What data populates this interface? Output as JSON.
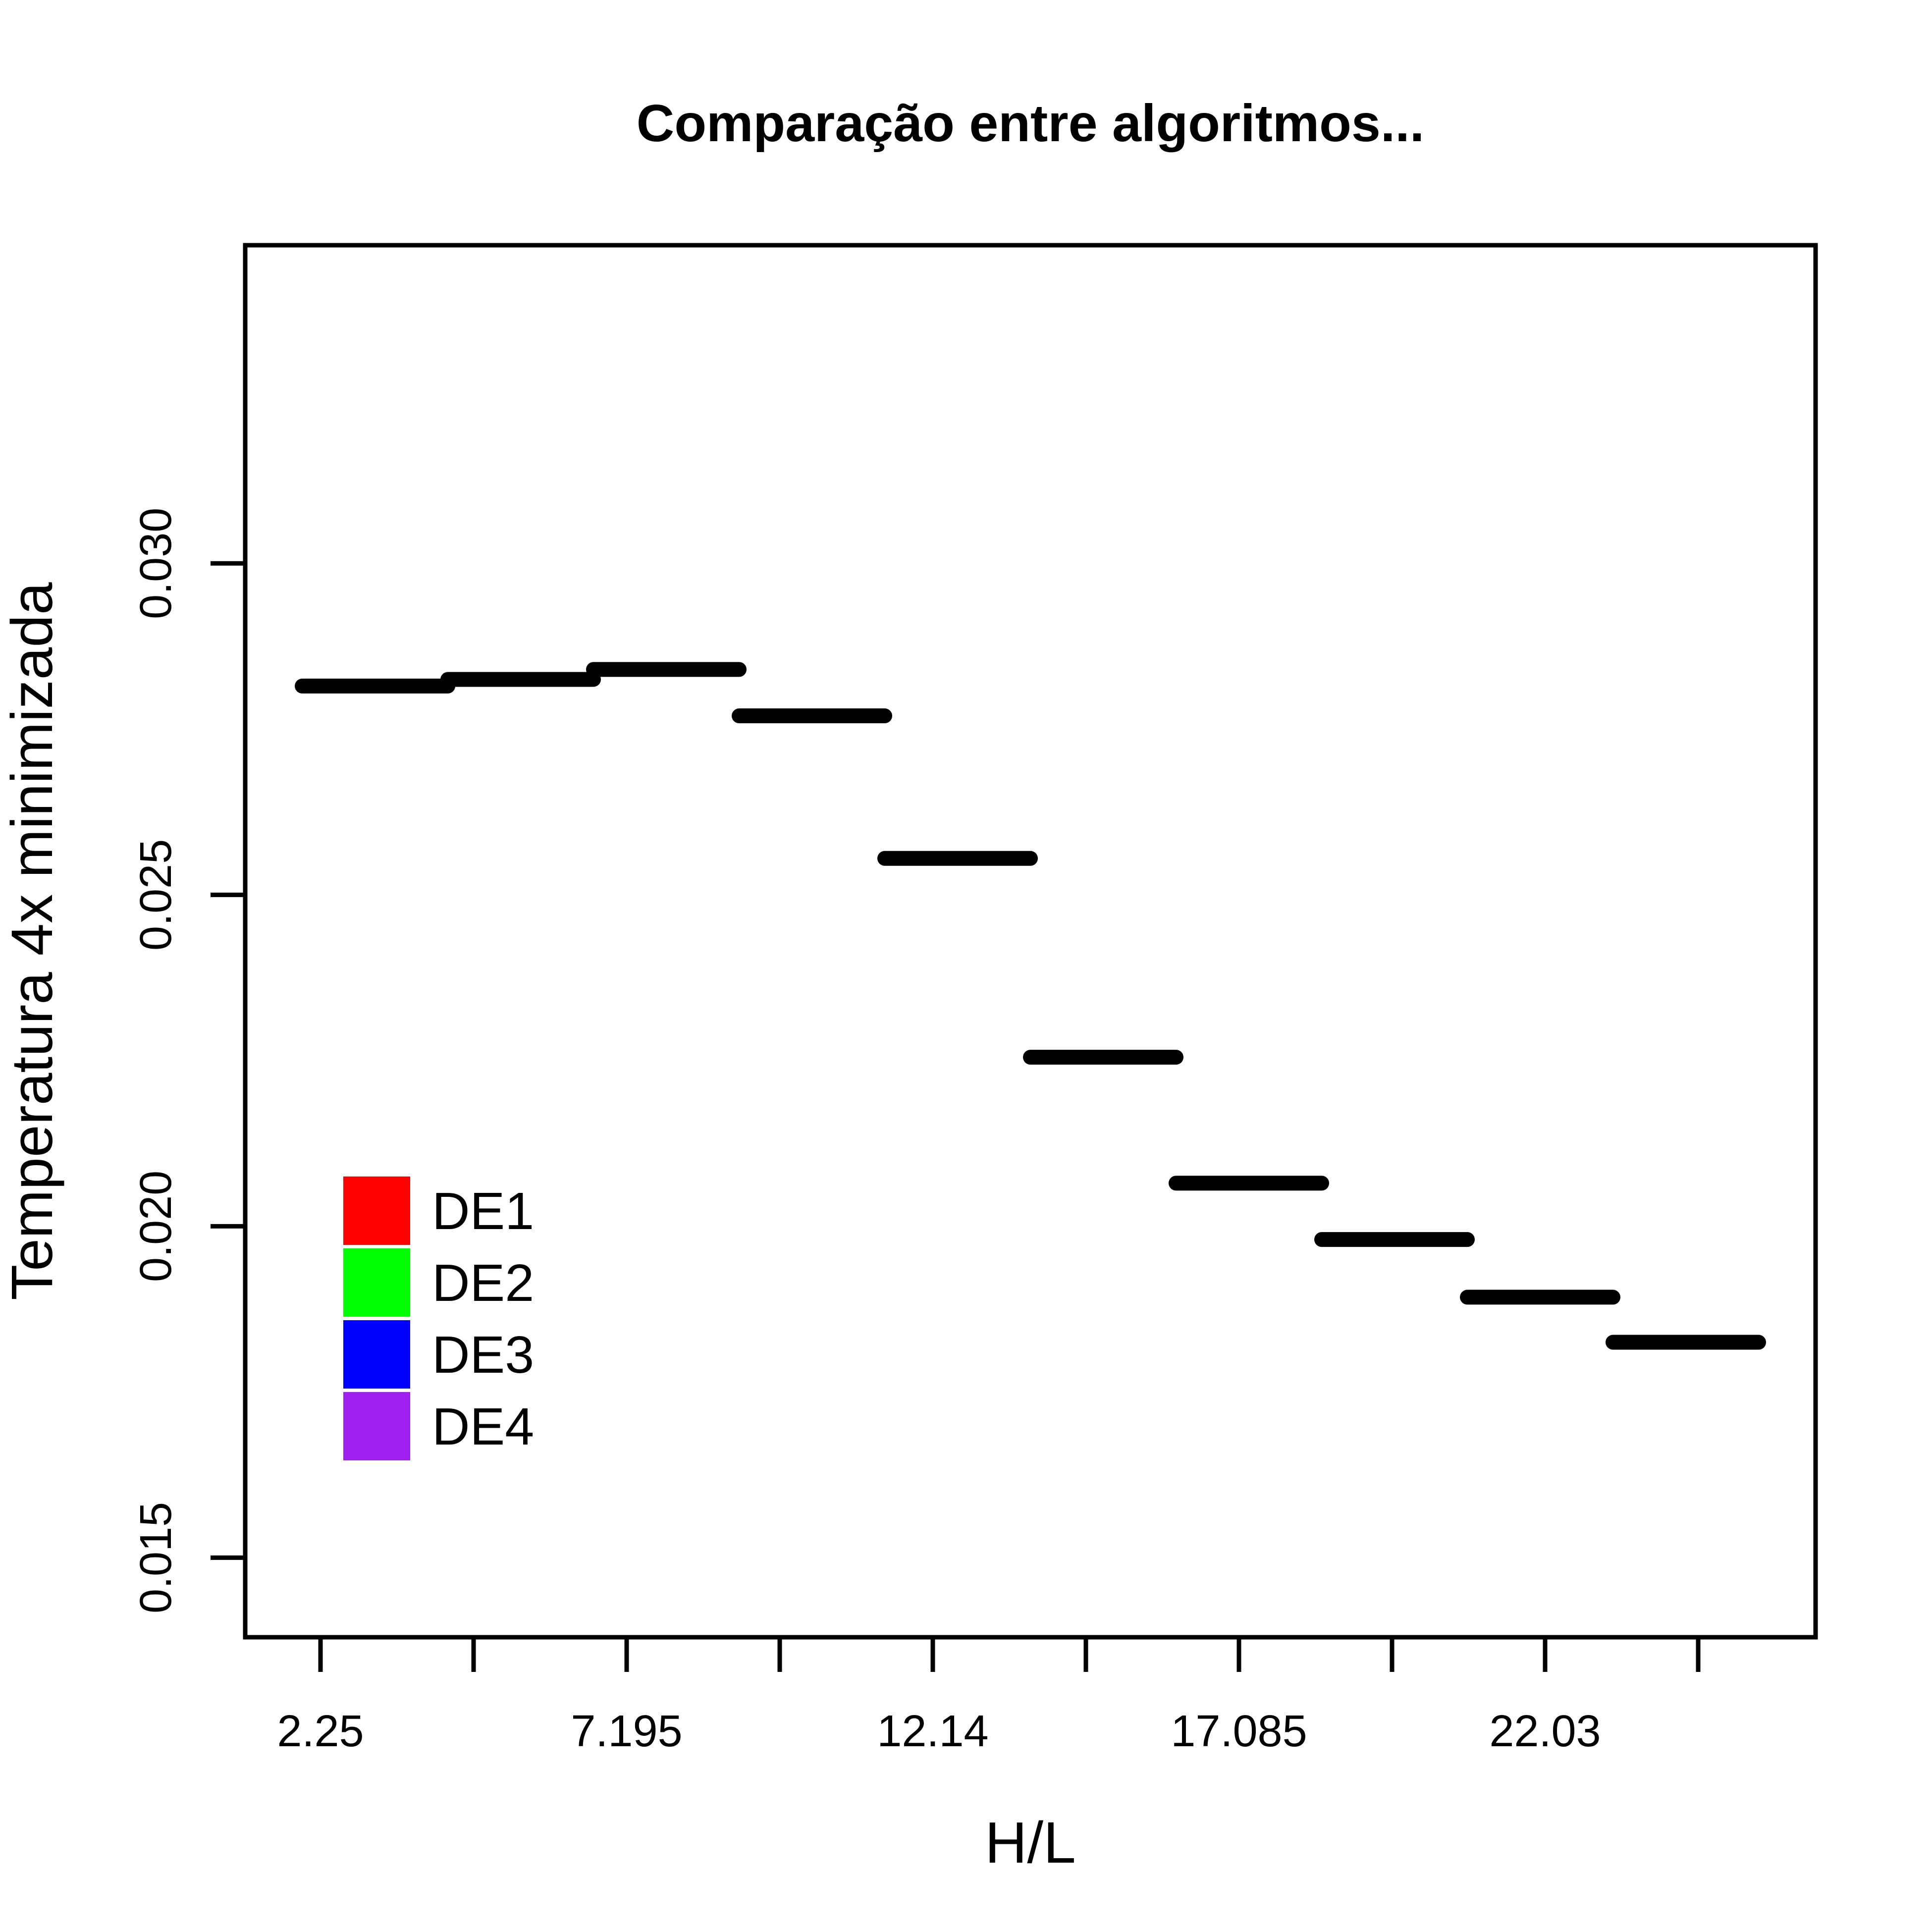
{
  "chart_data": {
    "type": "bar",
    "title": "Comparação entre algoritmos...",
    "xlabel": "H/L",
    "ylabel": "Temperatura 4x minimizada",
    "ylim": [
      0.0138,
      0.0348
    ],
    "yticks": [
      0.015,
      0.02,
      0.025,
      0.03
    ],
    "ytick_labels": [
      "0.015",
      "0.020",
      "0.025",
      "0.030"
    ],
    "categories": [
      "2.25",
      "",
      "7.195",
      "",
      "12.14",
      "",
      "17.085",
      "",
      "22.03",
      ""
    ],
    "values": [
      0.02815,
      0.02825,
      0.0284,
      0.0277,
      0.02555,
      0.02255,
      0.02065,
      0.0198,
      0.01893,
      0.01825
    ],
    "series_color": "#000000",
    "grid": false,
    "legend": {
      "position": "bottom-left",
      "entries": [
        {
          "label": "DE1",
          "color": "#ff0000"
        },
        {
          "label": "DE2",
          "color": "#00ff00"
        },
        {
          "label": "DE3",
          "color": "#0000ff"
        },
        {
          "label": "DE4",
          "color": "#a020f0"
        }
      ]
    }
  }
}
